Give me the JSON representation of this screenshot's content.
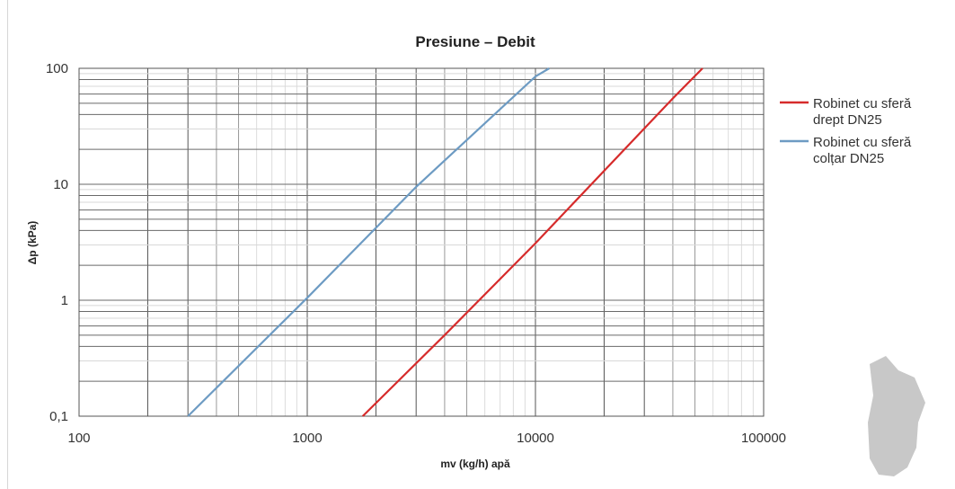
{
  "chart_data": {
    "type": "line",
    "title": "Presiune – Debit",
    "xlabel": "mv (kg/h) apă",
    "ylabel": "Δp (kPa)",
    "x_scale": "log",
    "y_scale": "log",
    "xlim": [
      100,
      100000
    ],
    "ylim": [
      0.1,
      100
    ],
    "x_tick_labels": [
      "100",
      "1000",
      "10000",
      "100000"
    ],
    "y_tick_labels": [
      "0,1",
      "1",
      "10",
      "100"
    ],
    "grid": true,
    "legend_position": "right",
    "series": [
      {
        "name_lines": [
          "Robinet cu sferă",
          "drept DN25"
        ],
        "color": "#d62b2b",
        "x": [
          1750,
          4000,
          10000,
          40000,
          54000
        ],
        "y": [
          0.1,
          0.5,
          3.1,
          55,
          100
        ]
      },
      {
        "name_lines": [
          "Robinet cu sferă",
          "colțar DN25"
        ],
        "color": "#6d9bc3",
        "x": [
          300,
          1000,
          3000,
          10000,
          11500
        ],
        "y": [
          0.1,
          1.05,
          9.5,
          85,
          100
        ]
      }
    ]
  }
}
